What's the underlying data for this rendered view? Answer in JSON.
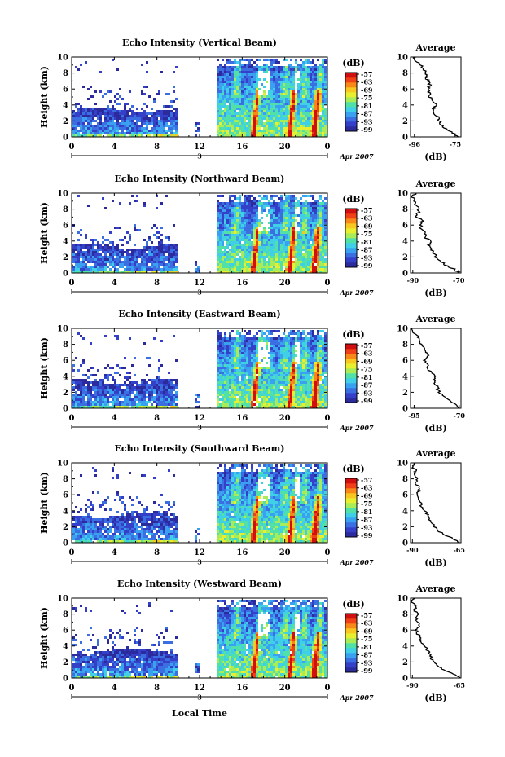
{
  "figure": {
    "x_axis_label": "Local Time",
    "date_label": "Apr 2007",
    "day_label": "3",
    "x_tick_labels": [
      "0",
      "4",
      "8",
      "12",
      "16",
      "20",
      "0"
    ],
    "y_axis_label": "Height (km)",
    "y_tick_labels": [
      "0",
      "2",
      "4",
      "6",
      "8",
      "10"
    ],
    "colorbar_unit": "(dB)",
    "colorbar_ticks": [
      "-57",
      "-63",
      "-69",
      "-75",
      "-81",
      "-87",
      "-93",
      "-99"
    ],
    "colormap": [
      "#2b2b9e",
      "#3440c8",
      "#3b6ee0",
      "#3aa0f0",
      "#3fd0e8",
      "#50e0a8",
      "#a8ec58",
      "#e8ee30",
      "#f8c820",
      "#f88818",
      "#f04018",
      "#d01010"
    ],
    "profile_title": "Average",
    "profile_xlabel": "(dB)"
  },
  "chart_data": [
    {
      "type": "heatmap",
      "title": "Echo Intensity (Vertical Beam)",
      "xlabel": "",
      "ylabel": "Height (km)",
      "xlim": [
        0,
        24
      ],
      "ylim": [
        0,
        10
      ],
      "colorbar": {
        "label": "(dB)",
        "range": [
          -99,
          -57
        ]
      },
      "gaps_hours": [
        [
          9.8,
          11.5
        ],
        [
          12.0,
          13.4
        ]
      ],
      "profile": {
        "title": "Average",
        "xlabel": "(dB)",
        "xtick_labels": [
          "-96",
          "-75"
        ],
        "xlim": [
          -98,
          -72
        ],
        "heights": [
          0,
          0.5,
          1,
          1.5,
          2,
          2.5,
          3,
          3.5,
          4,
          4.5,
          5,
          5.5,
          6,
          6.5,
          7,
          7.5,
          8,
          8.5,
          9,
          9.5,
          10
        ],
        "values": [
          -73,
          -76,
          -80,
          -82,
          -83,
          -84,
          -86,
          -86,
          -85,
          -87,
          -88,
          -88,
          -89,
          -88,
          -89,
          -90,
          -90,
          -91,
          -93,
          -95,
          -96
        ]
      }
    },
    {
      "type": "heatmap",
      "title": "Echo Intensity (Northward Beam)",
      "xlabel": "",
      "ylabel": "Height (km)",
      "xlim": [
        0,
        24
      ],
      "ylim": [
        0,
        10
      ],
      "colorbar": {
        "label": "(dB)",
        "range": [
          -99,
          -57
        ]
      },
      "gaps_hours": [
        [
          9.8,
          11.5
        ],
        [
          12.0,
          13.4
        ]
      ],
      "profile": {
        "title": "Average",
        "xlabel": "(dB)",
        "xtick_labels": [
          "-90",
          "-70"
        ],
        "xlim": [
          -91,
          -69
        ],
        "heights": [
          0,
          0.5,
          1,
          1.5,
          2,
          2.5,
          3,
          3.5,
          4,
          4.5,
          5,
          5.5,
          6,
          6.5,
          7,
          7.5,
          8,
          8.5,
          9,
          9.5,
          10
        ],
        "values": [
          -70,
          -72,
          -76,
          -78,
          -80,
          -81,
          -82,
          -83,
          -82,
          -85,
          -84,
          -86,
          -87,
          -86,
          -88,
          -88,
          -87,
          -89,
          -89,
          -90,
          -89
        ]
      }
    },
    {
      "type": "heatmap",
      "title": "Echo Intensity (Eastward Beam)",
      "xlabel": "",
      "ylabel": "Height (km)",
      "xlim": [
        0,
        24
      ],
      "ylim": [
        0,
        10
      ],
      "colorbar": {
        "label": "(dB)",
        "range": [
          -99,
          -57
        ]
      },
      "gaps_hours": [
        [
          9.8,
          11.5
        ],
        [
          12.0,
          13.4
        ]
      ],
      "profile": {
        "title": "Average",
        "xlabel": "(dB)",
        "xtick_labels": [
          "-95",
          "-70"
        ],
        "xlim": [
          -97,
          -69
        ],
        "heights": [
          0,
          0.5,
          1,
          1.5,
          2,
          2.5,
          3,
          3.5,
          4,
          4.5,
          5,
          5.5,
          6,
          6.5,
          7,
          7.5,
          8,
          8.5,
          9,
          9.5,
          10
        ],
        "values": [
          -70,
          -72,
          -76,
          -79,
          -81,
          -82,
          -83,
          -84,
          -83,
          -86,
          -87,
          -88,
          -89,
          -87,
          -88,
          -90,
          -91,
          -92,
          -93,
          -95,
          -96
        ]
      }
    },
    {
      "type": "heatmap",
      "title": "Echo Intensity (Southward Beam)",
      "xlabel": "",
      "ylabel": "Height (km)",
      "xlim": [
        0,
        24
      ],
      "ylim": [
        0,
        10
      ],
      "colorbar": {
        "label": "(dB)",
        "range": [
          -99,
          -57
        ]
      },
      "gaps_hours": [
        [
          9.8,
          11.5
        ],
        [
          12.0,
          13.4
        ]
      ],
      "profile": {
        "title": "Average",
        "xlabel": "(dB)",
        "xtick_labels": [
          "-90",
          "-65"
        ],
        "xlim": [
          -91,
          -64
        ],
        "heights": [
          0,
          0.5,
          1,
          1.5,
          2,
          2.5,
          3,
          3.5,
          4,
          4.5,
          5,
          5.5,
          6,
          6.5,
          7,
          7.5,
          8,
          8.5,
          9,
          9.5,
          10
        ],
        "values": [
          -65,
          -68,
          -73,
          -76,
          -78,
          -80,
          -81,
          -82,
          -83,
          -86,
          -85,
          -87,
          -88,
          -86,
          -87,
          -88,
          -87,
          -89,
          -88,
          -90,
          -89
        ]
      }
    },
    {
      "type": "heatmap",
      "title": "Echo Intensity (Westward Beam)",
      "xlabel": "Local Time",
      "ylabel": "Height (km)",
      "xlim": [
        0,
        24
      ],
      "ylim": [
        0,
        10
      ],
      "colorbar": {
        "label": "(dB)",
        "range": [
          -99,
          -57
        ]
      },
      "gaps_hours": [
        [
          9.8,
          11.5
        ],
        [
          12.0,
          13.4
        ]
      ],
      "profile": {
        "title": "Average",
        "xlabel": "(dB)",
        "xtick_labels": [
          "-90",
          "-65"
        ],
        "xlim": [
          -91,
          -64
        ],
        "heights": [
          0,
          0.5,
          1,
          1.5,
          2,
          2.5,
          3,
          3.5,
          4,
          4.5,
          5,
          5.5,
          6,
          6.5,
          7,
          7.5,
          8,
          8.5,
          9,
          9.5,
          10
        ],
        "values": [
          -65,
          -68,
          -73,
          -76,
          -78,
          -80,
          -81,
          -82,
          -83,
          -86,
          -85,
          -87,
          -88,
          -86,
          -87,
          -88,
          -87,
          -89,
          -88,
          -90,
          -89
        ]
      }
    }
  ]
}
